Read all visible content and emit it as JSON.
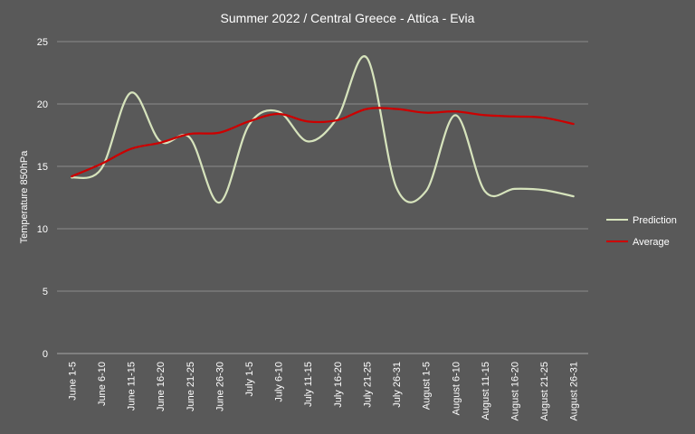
{
  "chart_data": {
    "type": "line",
    "title": "Summer 2022 / Central Greece - Attica - Evia",
    "xlabel": "",
    "ylabel": "Temperature 850hPa",
    "ylim": [
      0,
      25
    ],
    "yticks": [
      0,
      5,
      10,
      15,
      20,
      25
    ],
    "grid": true,
    "legend_position": "right",
    "categories": [
      "June 1-5",
      "June 6-10",
      "June 11-15",
      "June 16-20",
      "June 21-25",
      "June 26-30",
      "July 1-5",
      "July 6-10",
      "July 11-15",
      "July 16-20",
      "July 21-25",
      "July 26-31",
      "August 1-5",
      "August 6-10",
      "August 11-15",
      "August 16-20",
      "August 21-25",
      "August 26-31"
    ],
    "series": [
      {
        "name": "Prediction",
        "color": "#d6e3bc",
        "values": [
          14.1,
          14.8,
          20.9,
          17.0,
          17.3,
          12.1,
          18.3,
          19.4,
          17.0,
          18.9,
          23.7,
          13.3,
          13.0,
          19.1,
          13.0,
          13.2,
          13.1,
          12.6
        ]
      },
      {
        "name": "Average",
        "color": "#cc0000",
        "values": [
          14.2,
          15.2,
          16.4,
          16.9,
          17.6,
          17.7,
          18.6,
          19.2,
          18.6,
          18.7,
          19.6,
          19.6,
          19.3,
          19.4,
          19.1,
          19.0,
          18.9,
          18.4
        ]
      }
    ]
  }
}
